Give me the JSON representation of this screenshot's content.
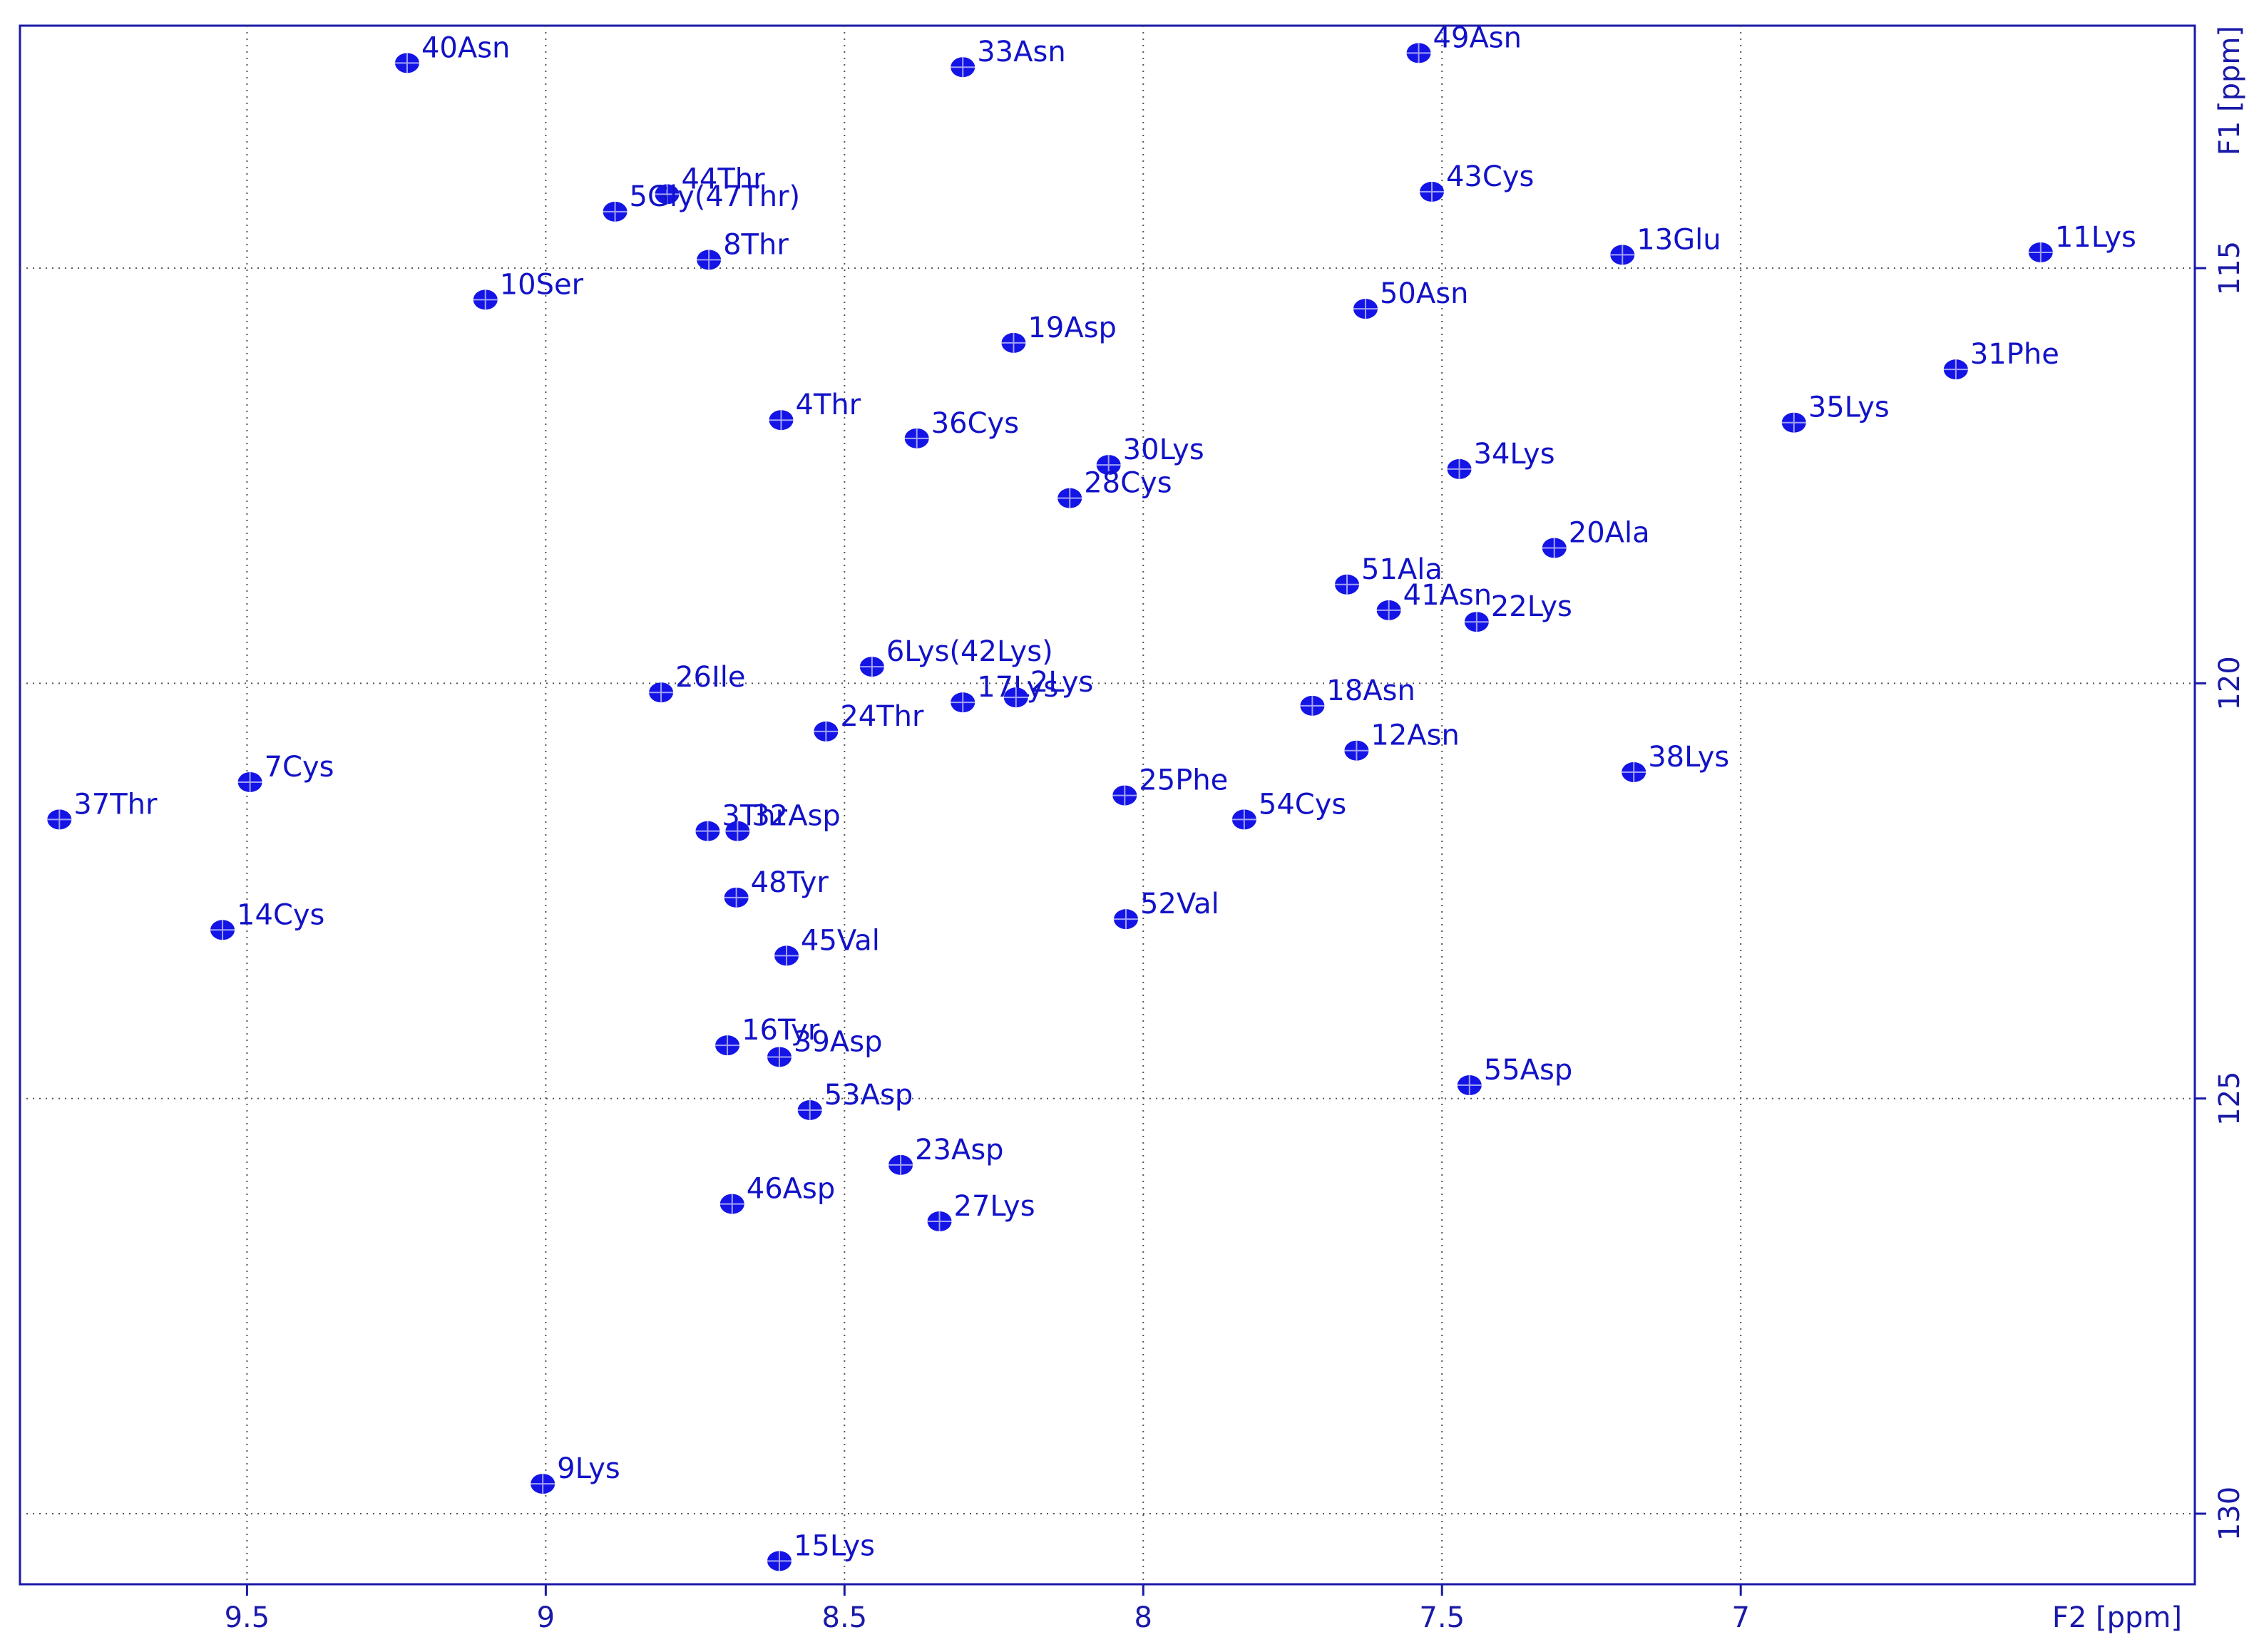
{
  "chart_data": {
    "type": "scatter",
    "xlabel": "F2 [ppm]",
    "ylabel": "F1 [ppm]",
    "xlim": [
      9.88,
      6.24
    ],
    "ylim": [
      130.85,
      112.08
    ],
    "xticks": [
      9.5,
      9.0,
      8.5,
      8.0,
      7.5,
      7.0
    ],
    "yticks": [
      115,
      120,
      125,
      130
    ],
    "grid": true,
    "color": "#1414e6",
    "labels": [
      "40Asn",
      "33Asn",
      "49Asn",
      "44Thr",
      "5Gly(47Thr)",
      "43Cys",
      "8Thr",
      "13Glu",
      "11Lys",
      "10Ser",
      "50Asn",
      "19Asp",
      "31Phe",
      "4Thr",
      "35Lys",
      "36Cys",
      "30Lys",
      "34Lys",
      "28Cys",
      "20Ala",
      "51Ala",
      "41Asn",
      "22Lys",
      "6Lys(42Lys)",
      "26Ile",
      "17Lys",
      "2Lys",
      "24Thr",
      "18Asn",
      "12Asn",
      "7Cys",
      "38Lys",
      "25Phe",
      "37Thr",
      "54Cys",
      "3Thr",
      "32Asp",
      "48Tyr",
      "14Cys",
      "52Val",
      "45Val",
      "16Tyr",
      "39Asp",
      "55Asp",
      "53Asp",
      "23Asp",
      "46Asp",
      "27Lys",
      "9Lys",
      "15Lys"
    ],
    "x": [
      9.232,
      8.302,
      7.539,
      8.797,
      8.884,
      7.517,
      8.727,
      7.198,
      6.498,
      9.101,
      7.628,
      8.217,
      6.64,
      8.606,
      6.911,
      8.379,
      8.058,
      7.471,
      8.123,
      7.312,
      7.659,
      7.589,
      7.442,
      8.454,
      8.807,
      8.302,
      8.213,
      8.531,
      7.717,
      7.643,
      9.495,
      7.179,
      8.031,
      9.814,
      7.831,
      8.729,
      8.679,
      8.681,
      9.541,
      8.029,
      8.597,
      8.696,
      8.609,
      7.454,
      8.558,
      8.406,
      8.688,
      8.341,
      9.005,
      8.609
    ],
    "y": [
      112.53,
      112.58,
      112.41,
      114.11,
      114.32,
      114.08,
      114.9,
      114.84,
      114.81,
      115.38,
      115.49,
      115.9,
      116.22,
      116.83,
      116.86,
      117.05,
      117.37,
      117.42,
      117.77,
      118.37,
      118.81,
      119.12,
      119.26,
      119.8,
      120.11,
      120.23,
      120.17,
      120.58,
      120.27,
      120.81,
      121.19,
      121.07,
      121.35,
      121.64,
      121.64,
      121.78,
      121.78,
      122.58,
      122.97,
      122.84,
      123.28,
      124.36,
      124.5,
      124.84,
      125.14,
      125.8,
      126.27,
      126.48,
      129.64,
      130.57
    ]
  }
}
